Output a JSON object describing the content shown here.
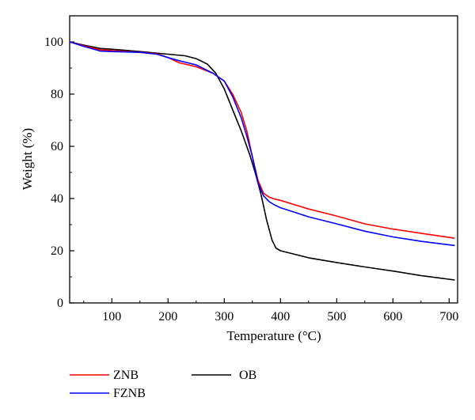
{
  "chart_data": {
    "type": "line",
    "title": "",
    "xlabel": "Temperature (°C)",
    "ylabel": "Weight (%)",
    "xlim": [
      25,
      715
    ],
    "ylim": [
      0,
      110
    ],
    "x_ticks": [
      100,
      200,
      300,
      400,
      500,
      600,
      700
    ],
    "y_ticks": [
      0,
      20,
      40,
      60,
      80,
      100
    ],
    "grid": false,
    "legend_position": "bottom, below plot",
    "series": [
      {
        "name": "ZNB",
        "color": "#ff0000",
        "x": [
          25,
          50,
          80,
          100,
          150,
          180,
          200,
          220,
          250,
          280,
          300,
          315,
          330,
          340,
          350,
          360,
          370,
          380,
          390,
          400,
          450,
          500,
          550,
          600,
          650,
          710
        ],
        "y": [
          100,
          98.5,
          97,
          96.7,
          96,
          95.5,
          94,
          92,
          90.5,
          88,
          85,
          80,
          73,
          66,
          56,
          47,
          42,
          40.5,
          39.8,
          39.3,
          36,
          33.3,
          30.3,
          28.3,
          26.7,
          24.8
        ]
      },
      {
        "name": "FZNB",
        "color": "#0000ff",
        "x": [
          25,
          50,
          80,
          100,
          150,
          180,
          200,
          220,
          250,
          280,
          300,
          315,
          330,
          340,
          350,
          360,
          370,
          380,
          390,
          400,
          450,
          500,
          550,
          600,
          650,
          710
        ],
        "y": [
          100,
          98.3,
          96.5,
          96.3,
          96,
          95.3,
          94,
          92.8,
          91.2,
          88,
          85,
          79,
          71,
          64,
          56,
          46,
          41,
          38.8,
          37.5,
          36.5,
          33,
          30.3,
          27.5,
          25.3,
          23.6,
          22
        ]
      },
      {
        "name": "OB",
        "color": "#000000",
        "x": [
          25,
          50,
          80,
          100,
          150,
          200,
          230,
          250,
          270,
          285,
          300,
          315,
          330,
          345,
          355,
          365,
          375,
          385,
          392,
          400,
          450,
          500,
          550,
          600,
          650,
          710
        ],
        "y": [
          100,
          98.8,
          97.5,
          97.2,
          96.3,
          95.3,
          94.7,
          93.6,
          91.5,
          88,
          82,
          74,
          66,
          57,
          50,
          42,
          32,
          24,
          21,
          20,
          17.3,
          15.5,
          13.8,
          12.2,
          10.5,
          8.8
        ]
      }
    ]
  }
}
